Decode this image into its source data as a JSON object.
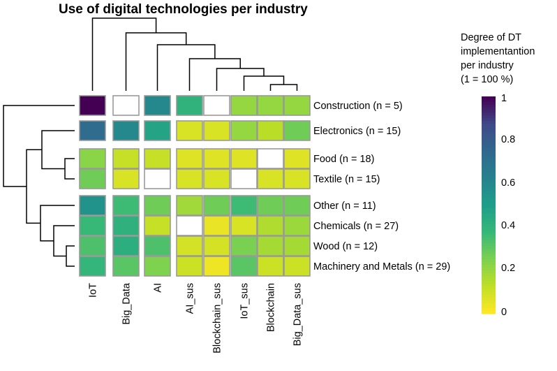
{
  "chart_data": {
    "type": "heatmap",
    "title": "Use of digital technologies per industry",
    "colorbar": {
      "title_lines": [
        "Degree of DT",
        "implementantion",
        "per industry",
        "(1 = 100 %)"
      ],
      "ticks": [
        "1",
        "0.8",
        "0.6",
        "0.4",
        "0.2",
        "0"
      ],
      "range": [
        0,
        1
      ],
      "colormap": "viridis (reversed: 0 = yellow, 1 = dark purple)"
    },
    "columns": [
      "IoT",
      "Big_Data",
      "AI",
      "AI_sus",
      "Blockchain_sus",
      "IoT_sus",
      "Blockchain",
      "Big_Data_sus"
    ],
    "rows": [
      {
        "label": "Construction (n = 5)",
        "values": [
          1.0,
          0.0,
          0.6,
          0.4,
          0.0,
          0.2,
          0.2,
          0.2
        ]
      },
      {
        "label": "Electronics (n = 15)",
        "values": [
          0.73,
          0.6,
          0.47,
          0.07,
          0.07,
          0.2,
          0.13,
          0.27
        ]
      },
      {
        "label": "Food (n = 18)",
        "values": [
          0.22,
          0.11,
          0.11,
          0.06,
          0.06,
          0.06,
          0.0,
          0.06
        ]
      },
      {
        "label": "Textile (n = 15)",
        "values": [
          0.27,
          0.07,
          0.0,
          0.07,
          0.07,
          0.0,
          0.07,
          0.07
        ]
      },
      {
        "label": "Other (n = 11)",
        "values": [
          0.55,
          0.36,
          0.27,
          0.18,
          0.27,
          0.36,
          0.27,
          0.27
        ]
      },
      {
        "label": "Chemicals (n = 27)",
        "values": [
          0.37,
          0.41,
          0.11,
          0.0,
          0.04,
          0.07,
          0.15,
          0.19
        ]
      },
      {
        "label": "Wood (n = 12)",
        "values": [
          0.33,
          0.42,
          0.33,
          0.08,
          0.08,
          0.25,
          0.17,
          0.17
        ]
      },
      {
        "label": "Machinery and Metals (n = 29)",
        "values": [
          0.38,
          0.31,
          0.24,
          0.1,
          0.03,
          0.31,
          0.1,
          0.1
        ]
      }
    ],
    "row_groups": [
      [
        0
      ],
      [
        1
      ],
      [
        2,
        3
      ],
      [
        4,
        5,
        6,
        7
      ]
    ],
    "column_groups": [
      [
        0
      ],
      [
        1
      ],
      [
        2
      ],
      [
        3,
        4,
        5,
        6,
        7
      ]
    ],
    "column_dendrogram": true,
    "row_dendrogram": true,
    "missing_or_zero_color": "#ffffff"
  }
}
